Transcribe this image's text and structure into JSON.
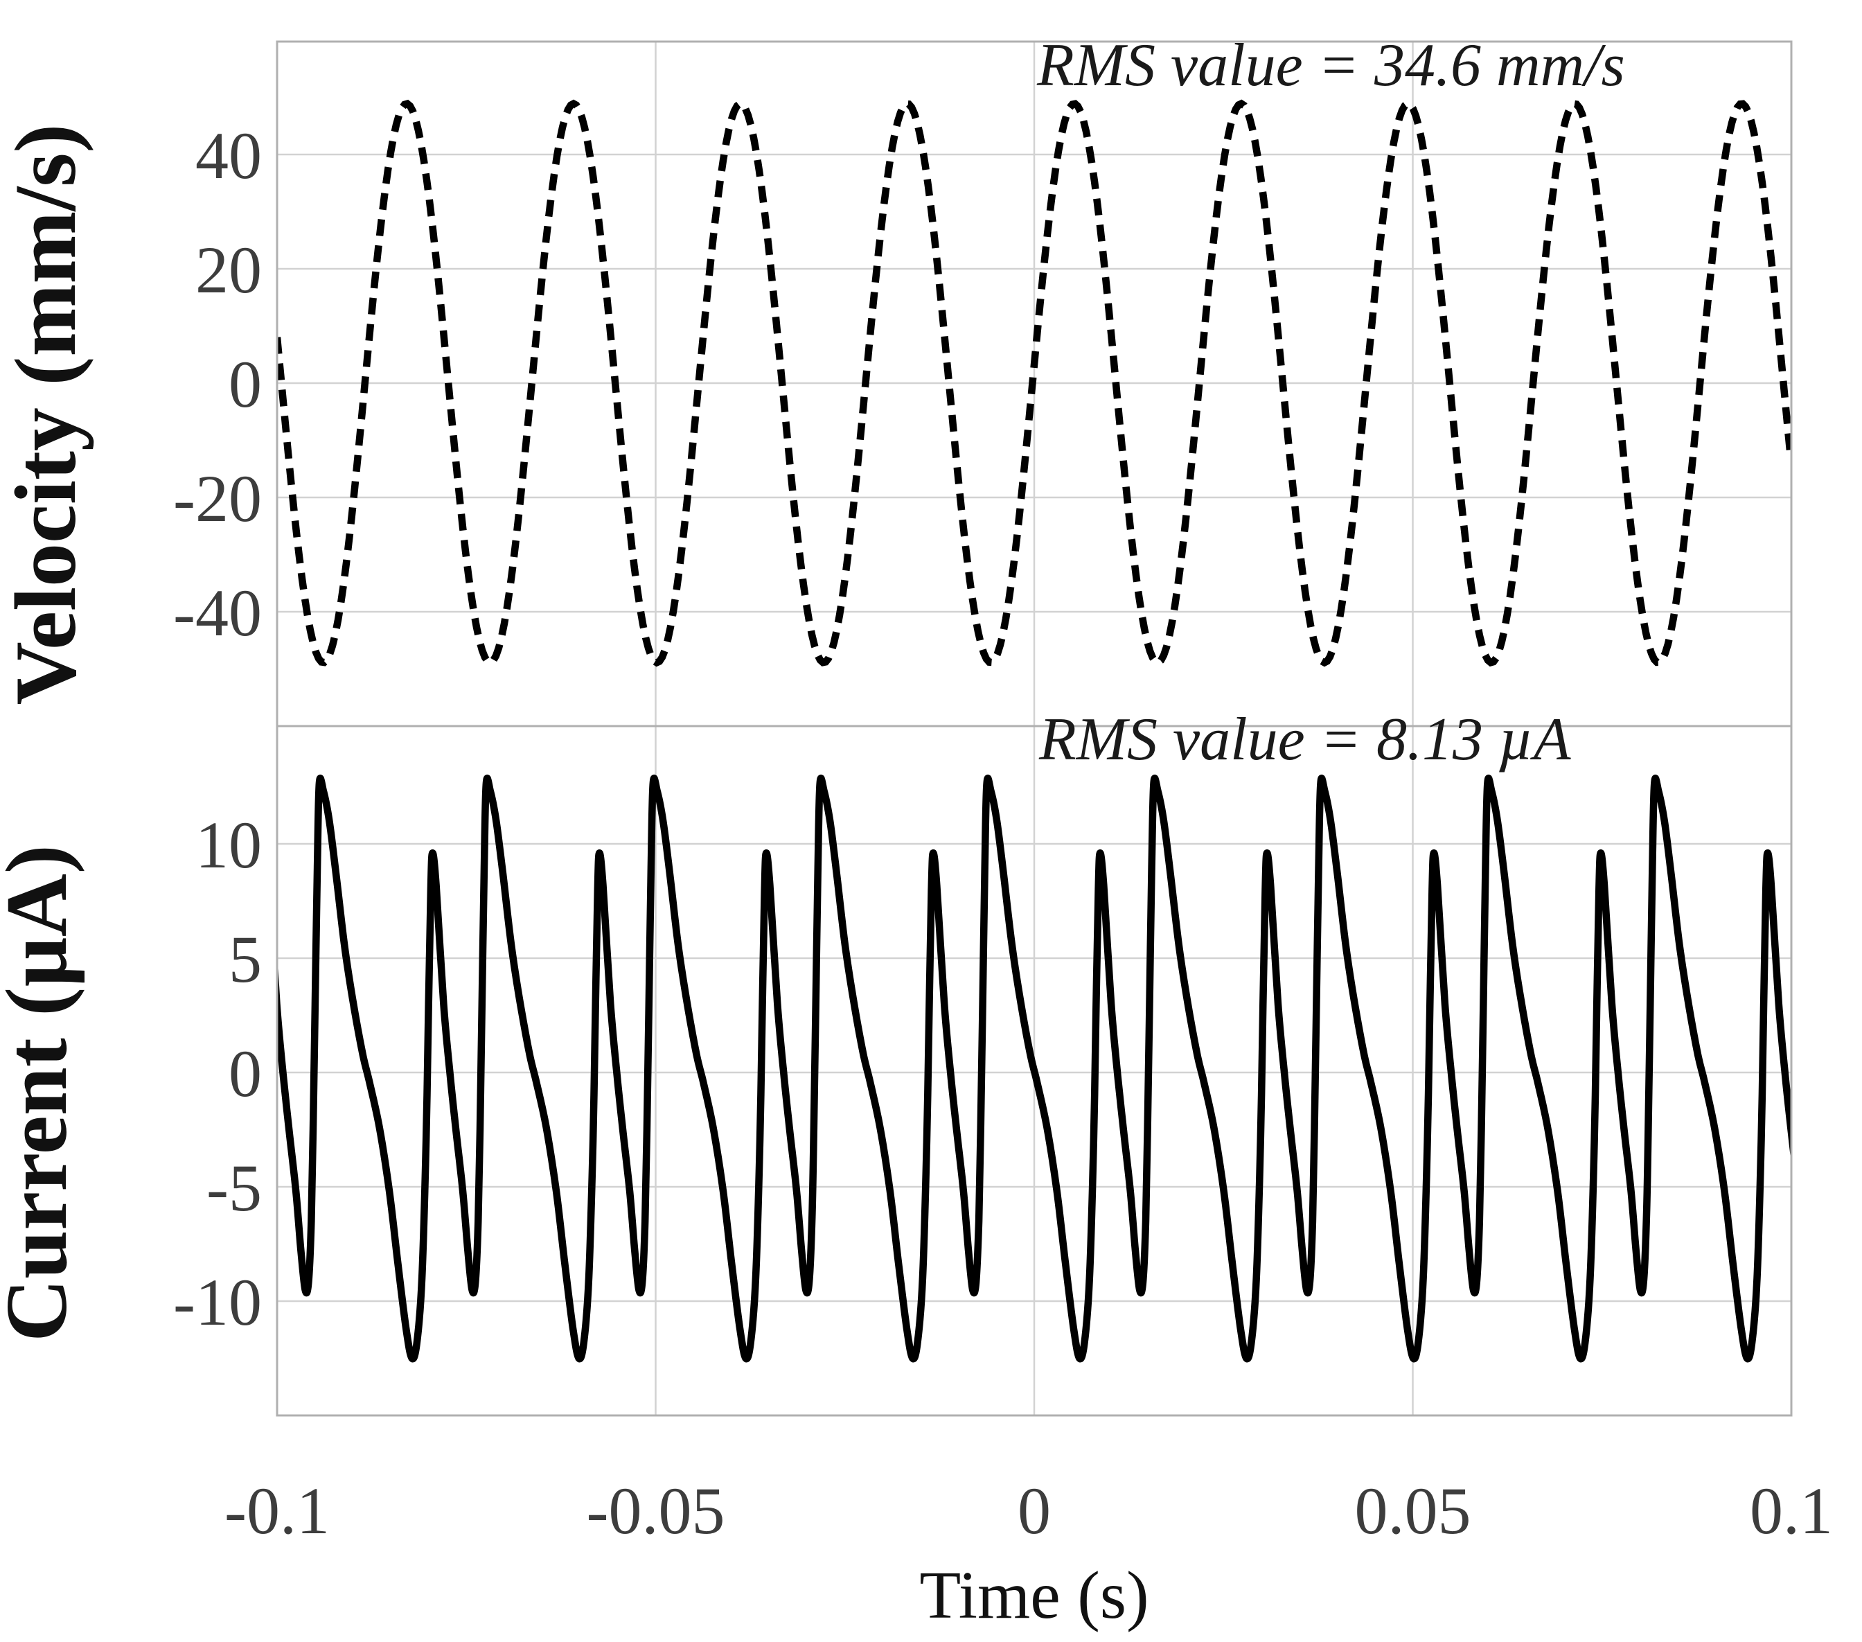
{
  "figure": {
    "background": "#ffffff",
    "x_axis": {
      "label": "Time (s)",
      "tick_labels": [
        "-0.1",
        "-0.05",
        "0",
        "0.05",
        "0.1"
      ],
      "tick_values": [
        -0.1,
        -0.05,
        0,
        0.05,
        0.1
      ],
      "range": [
        -0.1,
        0.1
      ]
    },
    "colors": {
      "curve": "#000000",
      "grid": "#d2d2d2",
      "border": "#b0b0b0",
      "tick_label": "#3d3d3d",
      "text": "#111111"
    }
  },
  "chart_data": [
    {
      "type": "line",
      "panel": "top",
      "ylabel": "Velocity (mm/s)",
      "annotation": "RMS value = 34.6 mm/s",
      "rms_value": 34.6,
      "rms_units": "mm/s",
      "line_style": "dashed",
      "ytick_labels": [
        "40",
        "20",
        "0",
        "-20",
        "-40"
      ],
      "ytick_values": [
        40,
        20,
        0,
        -20,
        -40
      ],
      "ylim": [
        -60,
        60
      ],
      "waveform": {
        "kind": "sine",
        "amplitude": 48.9,
        "period_s": 0.022042,
        "peak_time_s": -0.08289,
        "x_range_s": [
          -0.1,
          0.1
        ]
      }
    },
    {
      "type": "line",
      "panel": "bottom",
      "ylabel": "Current (µA)",
      "annotation": "RMS value = 8.13 µA",
      "rms_value": 8.13,
      "rms_units": "µA",
      "line_style": "solid",
      "ytick_labels": [
        "10",
        "5",
        "0",
        "-5",
        "-10"
      ],
      "ytick_values": [
        10,
        5,
        0,
        -5,
        -10
      ],
      "ylim": [
        -15,
        15
      ],
      "waveform": {
        "kind": "periodic-profile",
        "period_s": 0.022042,
        "tall_peak_time_s": -0.094424,
        "x_range_s": [
          -0.1,
          0.1
        ],
        "profile_phase_value": [
          [
            0.0,
            12.65
          ],
          [
            0.025,
            12.3
          ],
          [
            0.06,
            11.0
          ],
          [
            0.1,
            8.7
          ],
          [
            0.15,
            5.6
          ],
          [
            0.2,
            3.2
          ],
          [
            0.26,
            0.8
          ],
          [
            0.3,
            -0.4
          ],
          [
            0.36,
            -2.4
          ],
          [
            0.42,
            -5.2
          ],
          [
            0.47,
            -8.3
          ],
          [
            0.52,
            -11.2
          ],
          [
            0.555,
            -12.5
          ],
          [
            0.585,
            -11.8
          ],
          [
            0.615,
            -9.0
          ],
          [
            0.64,
            -3.0
          ],
          [
            0.655,
            3.0
          ],
          [
            0.668,
            8.0
          ],
          [
            0.678,
            9.6
          ],
          [
            0.7,
            8.2
          ],
          [
            0.745,
            3.0
          ],
          [
            0.785,
            -0.2
          ],
          [
            0.82,
            -2.6
          ],
          [
            0.86,
            -5.2
          ],
          [
            0.89,
            -7.8
          ],
          [
            0.915,
            -9.5
          ],
          [
            0.935,
            -9.2
          ],
          [
            0.952,
            -6.5
          ],
          [
            0.963,
            -2.5
          ],
          [
            0.975,
            3.0
          ],
          [
            0.988,
            9.0
          ]
        ]
      }
    }
  ]
}
